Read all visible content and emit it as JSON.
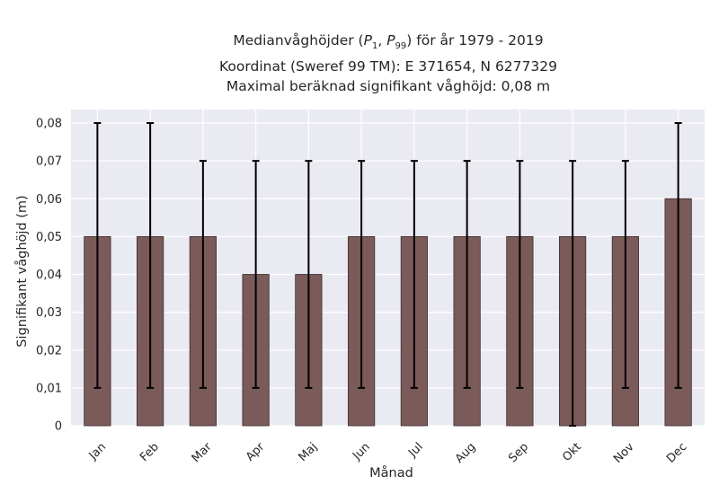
{
  "title": {
    "line1": "Medianvåghöjder (P1, P99) för år 1979 - 2019",
    "line2": "Koordinat (Sweref 99 TM): E 371654, N 6277329",
    "line3": "Maximal beräknad signifikant våghöjd: 0,08 m"
  },
  "chart_data": {
    "type": "bar",
    "title": "Medianvåghöjder (P1, P99) för år 1979 - 2019",
    "xlabel": "Månad",
    "ylabel": "Signifikant våghöjd (m)",
    "categories": [
      "Jan",
      "Feb",
      "Mar",
      "Apr",
      "Maj",
      "Jun",
      "Jul",
      "Aug",
      "Sep",
      "Okt",
      "Nov",
      "Dec"
    ],
    "values": [
      0.05,
      0.05,
      0.05,
      0.04,
      0.04,
      0.05,
      0.05,
      0.05,
      0.05,
      0.05,
      0.05,
      0.06
    ],
    "error_low": [
      0.01,
      0.01,
      0.01,
      0.01,
      0.01,
      0.01,
      0.01,
      0.01,
      0.01,
      0.0,
      0.01,
      0.01
    ],
    "error_high": [
      0.08,
      0.08,
      0.07,
      0.07,
      0.07,
      0.07,
      0.07,
      0.07,
      0.07,
      0.07,
      0.07,
      0.08
    ],
    "ylim": [
      0,
      0.08
    ],
    "yticks": [
      "0",
      "0,01",
      "0,02",
      "0,03",
      "0,04",
      "0,05",
      "0,06",
      "0,07",
      "0,08"
    ],
    "grid": true,
    "colors": {
      "bar": "#7b5a5a",
      "bar_edge": "#3a2a2a",
      "error": "#000000",
      "plot_bg": "#eaeaf2",
      "grid": "#ffffff"
    }
  }
}
